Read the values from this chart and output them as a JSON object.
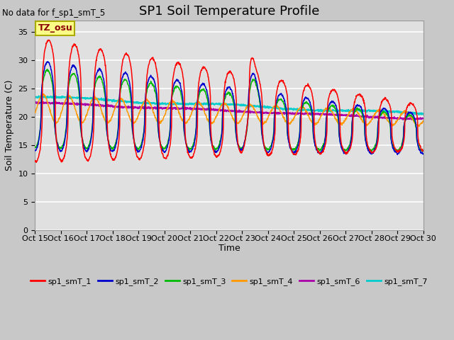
{
  "title": "SP1 Soil Temperature Profile",
  "no_data_text": "No data for f_sp1_smT_5",
  "ylabel": "Soil Temperature (C)",
  "xlabel": "Time",
  "tz_label": "TZ_osu",
  "ylim": [
    0,
    37
  ],
  "yticks": [
    0,
    5,
    10,
    15,
    20,
    25,
    30,
    35
  ],
  "fig_facecolor": "#c8c8c8",
  "ax_facecolor": "#e0e0e0",
  "grid_color": "#ffffff",
  "series_colors": {
    "sp1_smT_1": "#ff0000",
    "sp1_smT_2": "#0000cc",
    "sp1_smT_3": "#00bb00",
    "sp1_smT_4": "#ff9900",
    "sp1_smT_6": "#aa00aa",
    "sp1_smT_7": "#00cccc"
  },
  "title_fontsize": 13,
  "label_fontsize": 9,
  "tick_fontsize": 8,
  "legend_fontsize": 8
}
